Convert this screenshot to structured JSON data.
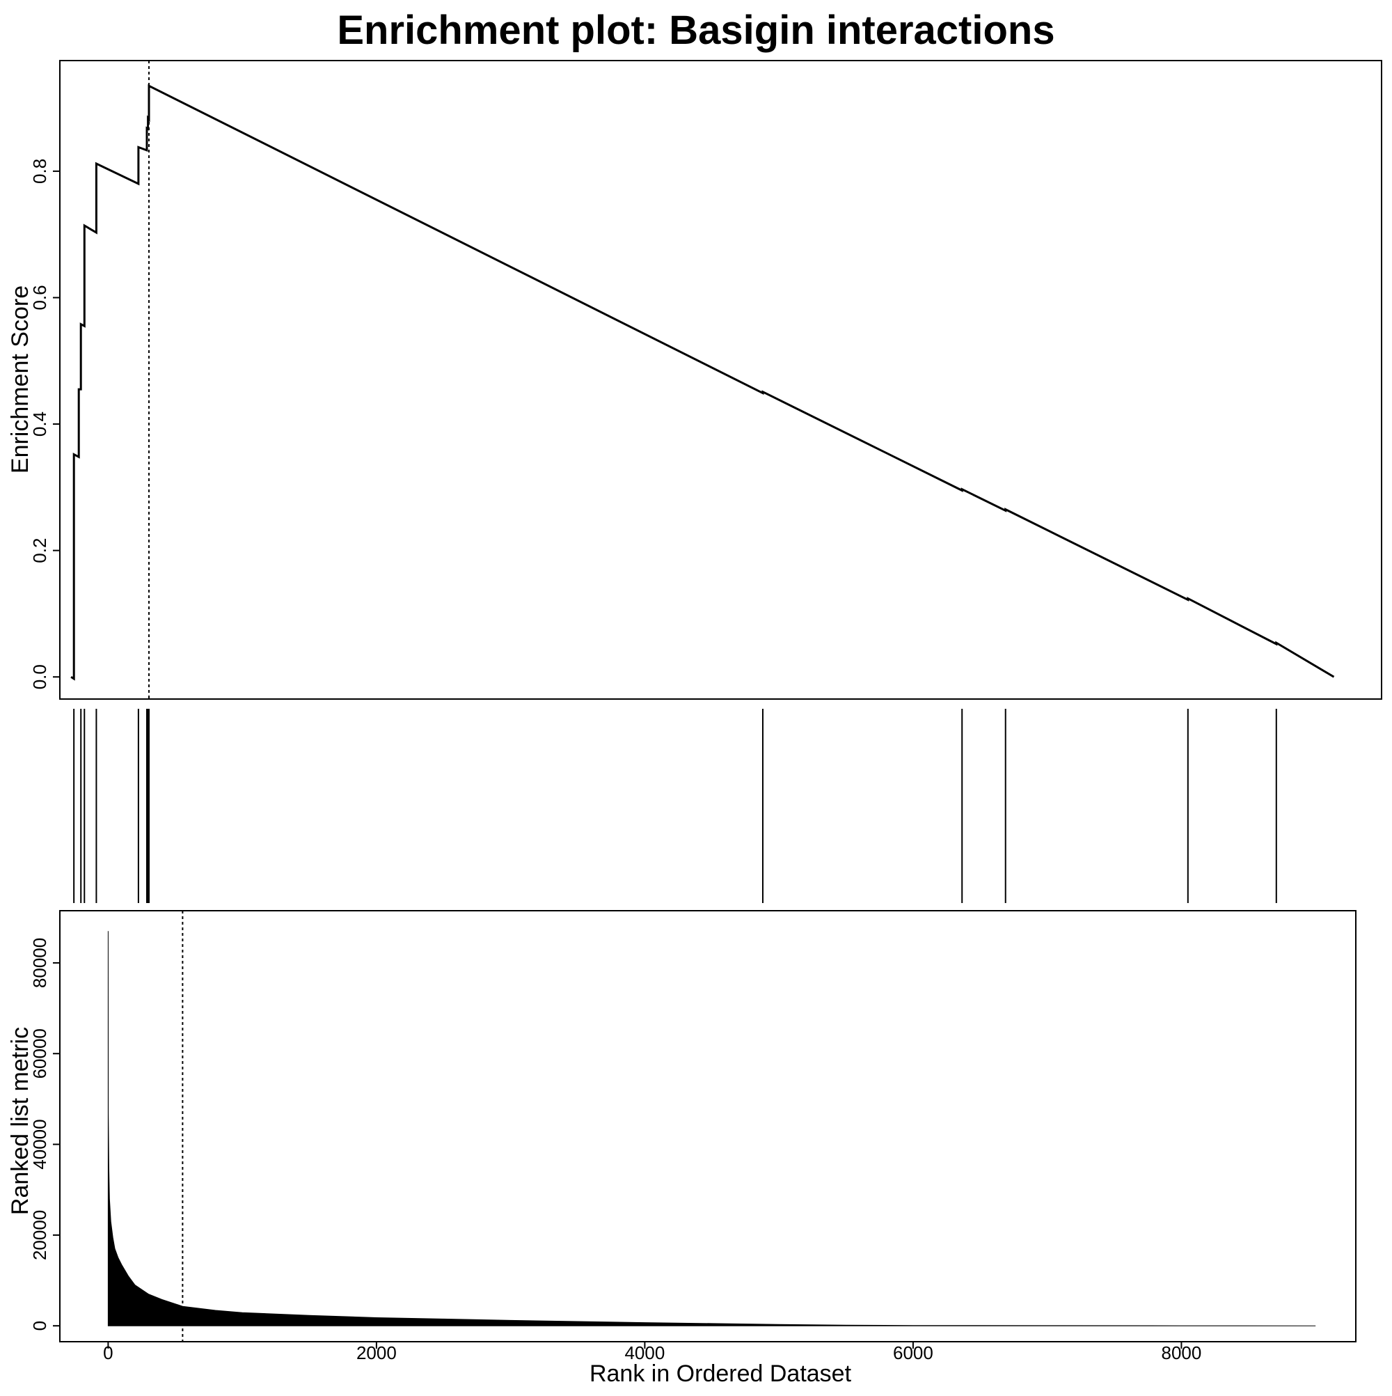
{
  "chart_data": [
    {
      "type": "line",
      "title": "Enrichment plot: Basigin interactions",
      "ylabel": "Enrichment Score",
      "xlim": [
        -80,
        9340
      ],
      "ylim": [
        -0.035,
        0.975
      ],
      "yticks": [
        0.0,
        0.2,
        0.4,
        0.6,
        0.8
      ],
      "ytick_labels": [
        "0.0",
        "0.2",
        "0.4",
        "0.6",
        "0.8"
      ],
      "series": [
        {
          "x": [
            0,
            20,
            20,
            55,
            55,
            70,
            70,
            95,
            95,
            180,
            180,
            480,
            480,
            540,
            540,
            548,
            548,
            555,
            555,
            4930,
            4930,
            6350,
            6350,
            6660,
            6660,
            7960,
            7960,
            8590,
            8590,
            9000
          ],
          "y": [
            0.0,
            -0.003,
            0.352,
            0.348,
            0.455,
            0.455,
            0.558,
            0.555,
            0.714,
            0.703,
            0.812,
            0.78,
            0.838,
            0.833,
            0.868,
            0.867,
            0.884,
            0.882,
            0.935,
            0.449,
            0.451,
            0.295,
            0.297,
            0.263,
            0.265,
            0.122,
            0.124,
            0.052,
            0.054,
            0.0
          ]
        }
      ],
      "vline_x": 555,
      "grid": false
    },
    {
      "type": "bar",
      "ylabel": "",
      "hits_x": [
        20,
        70,
        95,
        180,
        480,
        540,
        548,
        555,
        4930,
        6350,
        6660,
        7960,
        8590
      ]
    },
    {
      "type": "area",
      "xlabel": "Rank in Ordered Dataset",
      "ylabel": "Ranked list metric",
      "xlim": [
        -360,
        9300
      ],
      "ylim": [
        -3500,
        91500
      ],
      "xticks": [
        0,
        2000,
        4000,
        6000,
        8000
      ],
      "xtick_labels": [
        "0",
        "2000",
        "4000",
        "6000",
        "8000"
      ],
      "yticks": [
        0,
        20000,
        40000,
        60000,
        80000
      ],
      "ytick_labels": [
        "0",
        "20000",
        "40000",
        "60000",
        "80000"
      ],
      "series": [
        {
          "x": [
            0,
            1,
            3,
            5,
            10,
            20,
            35,
            50,
            75,
            100,
            150,
            200,
            300,
            400,
            555,
            800,
            1000,
            1500,
            2000,
            2500,
            3000,
            3500,
            4000,
            4500,
            5000,
            5500,
            6000,
            7000,
            8000,
            9000
          ],
          "y": [
            87000,
            47000,
            41000,
            35000,
            28000,
            23000,
            19500,
            17000,
            15000,
            13500,
            11000,
            9000,
            7000,
            5800,
            4300,
            3400,
            2900,
            2300,
            1800,
            1500,
            1200,
            950,
            700,
            500,
            300,
            150,
            80,
            40,
            20,
            0
          ]
        }
      ],
      "vline_x": 555,
      "grid": false
    }
  ]
}
